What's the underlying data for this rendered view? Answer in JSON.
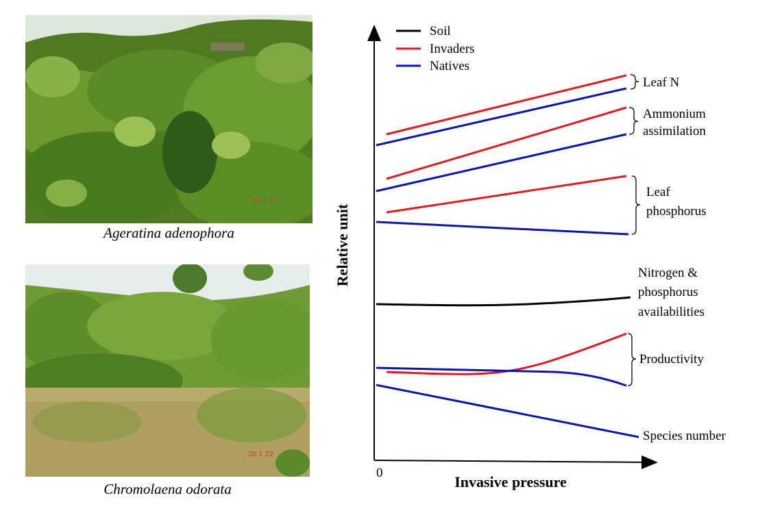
{
  "photos": [
    {
      "caption": "Ageratina adenophora",
      "date_stamp": "20   1   22",
      "sky": "#dfe6dc",
      "foliage": "#5f8f2a",
      "dark": "#2f5a18",
      "light": "#a8c85a"
    },
    {
      "caption": "Chromolaena odorata",
      "date_stamp": "20   1   22",
      "sky": "#e6ecea",
      "foliage": "#7a9a3a",
      "dark": "#3e6a1e",
      "light": "#c9b97a"
    }
  ],
  "diagram": {
    "y_label": "Relative unit",
    "x_label": "Invasive pressure",
    "origin_label": "0",
    "legend": [
      {
        "label": "Soil",
        "color": "#000000"
      },
      {
        "label": "Invaders",
        "color": "#e31a1c"
      },
      {
        "label": "Natives",
        "color": "#0a14b4"
      }
    ],
    "annotations": {
      "leaf_n": "Leaf N",
      "ammonium_1": "Ammonium",
      "ammonium_2": "assimilation",
      "leaf_p_1": "Leaf",
      "leaf_p_2": "phosphorus",
      "availability_1": "Nitrogen &",
      "availability_2": "phosphorus",
      "availability_3": "availabilities",
      "productivity": "Productivity",
      "species": "Species number"
    },
    "colors": {
      "soil": "#000000",
      "invaders": "#e31a1c",
      "natives": "#0a14b4"
    }
  }
}
